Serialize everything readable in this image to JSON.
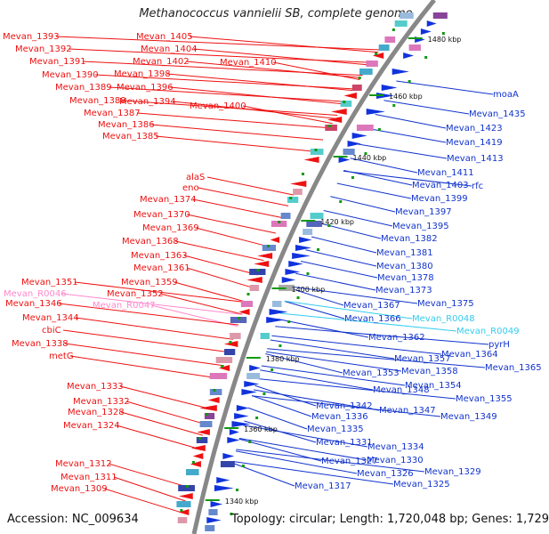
{
  "title": "Methanococcus vannielii SB, complete genome",
  "footer": {
    "accession": "Accession: NC_009634",
    "summary": "Topology: circular; Length: 1,720,048 bp; Genes: 1,729"
  },
  "colors": {
    "left_label": "#ee1111",
    "left_rna": "#ff88cc",
    "right_label": "#1133cc",
    "right_rna": "#33ccee",
    "backbone": "#888888",
    "tick": "#119911"
  },
  "scale_labels": [
    "1480 kbp",
    "1460 kbp",
    "1440 kbp",
    "1420 kbp",
    "1400 kbp",
    "1380 kbp",
    "1360 kbp",
    "1340 kbp"
  ],
  "left_labels": [
    {
      "text": "Mevan_1393",
      "kind": "gene"
    },
    {
      "text": "Mevan_1392",
      "kind": "gene"
    },
    {
      "text": "Mevan_1391",
      "kind": "gene"
    },
    {
      "text": "Mevan_1390",
      "kind": "gene"
    },
    {
      "text": "Mevan_1389",
      "kind": "gene"
    },
    {
      "text": "Mevan_1388",
      "kind": "gene"
    },
    {
      "text": "Mevan_1387",
      "kind": "gene"
    },
    {
      "text": "Mevan_1386",
      "kind": "gene"
    },
    {
      "text": "Mevan_1385",
      "kind": "gene"
    },
    {
      "text": "Mevan_1405",
      "kind": "gene"
    },
    {
      "text": "Mevan_1404",
      "kind": "gene"
    },
    {
      "text": "Mevan_1402",
      "kind": "gene"
    },
    {
      "text": "Mevan_1398",
      "kind": "gene"
    },
    {
      "text": "Mevan_1396",
      "kind": "gene"
    },
    {
      "text": "Mevan_1394",
      "kind": "gene"
    },
    {
      "text": "Mevan_1410",
      "kind": "gene"
    },
    {
      "text": "Mevan_1400",
      "kind": "gene"
    },
    {
      "text": "alaS",
      "kind": "gene"
    },
    {
      "text": "eno",
      "kind": "gene"
    },
    {
      "text": "Mevan_1374",
      "kind": "gene"
    },
    {
      "text": "Mevan_1370",
      "kind": "gene"
    },
    {
      "text": "Mevan_1369",
      "kind": "gene"
    },
    {
      "text": "Mevan_1368",
      "kind": "gene"
    },
    {
      "text": "Mevan_1363",
      "kind": "gene"
    },
    {
      "text": "Mevan_1361",
      "kind": "gene"
    },
    {
      "text": "Mevan_1359",
      "kind": "gene"
    },
    {
      "text": "Mevan_1351",
      "kind": "gene"
    },
    {
      "text": "Mevan_1352",
      "kind": "gene"
    },
    {
      "text": "Mevan_R0046",
      "kind": "rna"
    },
    {
      "text": "Mevan_R0047",
      "kind": "rna"
    },
    {
      "text": "Mevan_1346",
      "kind": "gene"
    },
    {
      "text": "Mevan_1344",
      "kind": "gene"
    },
    {
      "text": "cbiC",
      "kind": "gene"
    },
    {
      "text": "Mevan_1338",
      "kind": "gene"
    },
    {
      "text": "metG",
      "kind": "gene"
    },
    {
      "text": "Mevan_1333",
      "kind": "gene"
    },
    {
      "text": "Mevan_1332",
      "kind": "gene"
    },
    {
      "text": "Mevan_1328",
      "kind": "gene"
    },
    {
      "text": "Mevan_1324",
      "kind": "gene"
    },
    {
      "text": "Mevan_1312",
      "kind": "gene"
    },
    {
      "text": "Mevan_1311",
      "kind": "gene"
    },
    {
      "text": "Mevan_1309",
      "kind": "gene"
    }
  ],
  "right_labels": [
    {
      "text": "moaA",
      "kind": "gene"
    },
    {
      "text": "Mevan_1435",
      "kind": "gene"
    },
    {
      "text": "Mevan_1423",
      "kind": "gene"
    },
    {
      "text": "Mevan_1419",
      "kind": "gene"
    },
    {
      "text": "Mevan_1413",
      "kind": "gene"
    },
    {
      "text": "Mevan_1411",
      "kind": "gene"
    },
    {
      "text": "Mevan_1403",
      "kind": "gene"
    },
    {
      "text": "rfc",
      "kind": "gene"
    },
    {
      "text": "Mevan_1399",
      "kind": "gene"
    },
    {
      "text": "Mevan_1397",
      "kind": "gene"
    },
    {
      "text": "Mevan_1395",
      "kind": "gene"
    },
    {
      "text": "Mevan_1382",
      "kind": "gene"
    },
    {
      "text": "Mevan_1381",
      "kind": "gene"
    },
    {
      "text": "Mevan_1380",
      "kind": "gene"
    },
    {
      "text": "Mevan_1378",
      "kind": "gene"
    },
    {
      "text": "Mevan_1373",
      "kind": "gene"
    },
    {
      "text": "Mevan_1375",
      "kind": "gene"
    },
    {
      "text": "Mevan_1367",
      "kind": "gene"
    },
    {
      "text": "Mevan_1366",
      "kind": "gene"
    },
    {
      "text": "Mevan_R0048",
      "kind": "rna"
    },
    {
      "text": "Mevan_R0049",
      "kind": "rna"
    },
    {
      "text": "pyrH",
      "kind": "gene"
    },
    {
      "text": "Mevan_1362",
      "kind": "gene"
    },
    {
      "text": "Mevan_1364",
      "kind": "gene"
    },
    {
      "text": "Mevan_1357",
      "kind": "gene"
    },
    {
      "text": "Mevan_1365",
      "kind": "gene"
    },
    {
      "text": "Mevan_1353",
      "kind": "gene"
    },
    {
      "text": "Mevan_1358",
      "kind": "gene"
    },
    {
      "text": "Mevan_1354",
      "kind": "gene"
    },
    {
      "text": "Mevan_1348",
      "kind": "gene"
    },
    {
      "text": "Mevan_1355",
      "kind": "gene"
    },
    {
      "text": "Mevan_1342",
      "kind": "gene"
    },
    {
      "text": "Mevan_1347",
      "kind": "gene"
    },
    {
      "text": "Mevan_1349",
      "kind": "gene"
    },
    {
      "text": "Mevan_1336",
      "kind": "gene"
    },
    {
      "text": "Mevan_1335",
      "kind": "gene"
    },
    {
      "text": "Mevan_1331",
      "kind": "gene"
    },
    {
      "text": "Mevan_1334",
      "kind": "gene"
    },
    {
      "text": "Mevan_1330",
      "kind": "gene"
    },
    {
      "text": "Mevan_1327",
      "kind": "gene"
    },
    {
      "text": "Mevan_1329",
      "kind": "gene"
    },
    {
      "text": "Mevan_1326",
      "kind": "gene"
    },
    {
      "text": "Mevan_1325",
      "kind": "gene"
    },
    {
      "text": "Mevan_1317",
      "kind": "gene"
    }
  ]
}
